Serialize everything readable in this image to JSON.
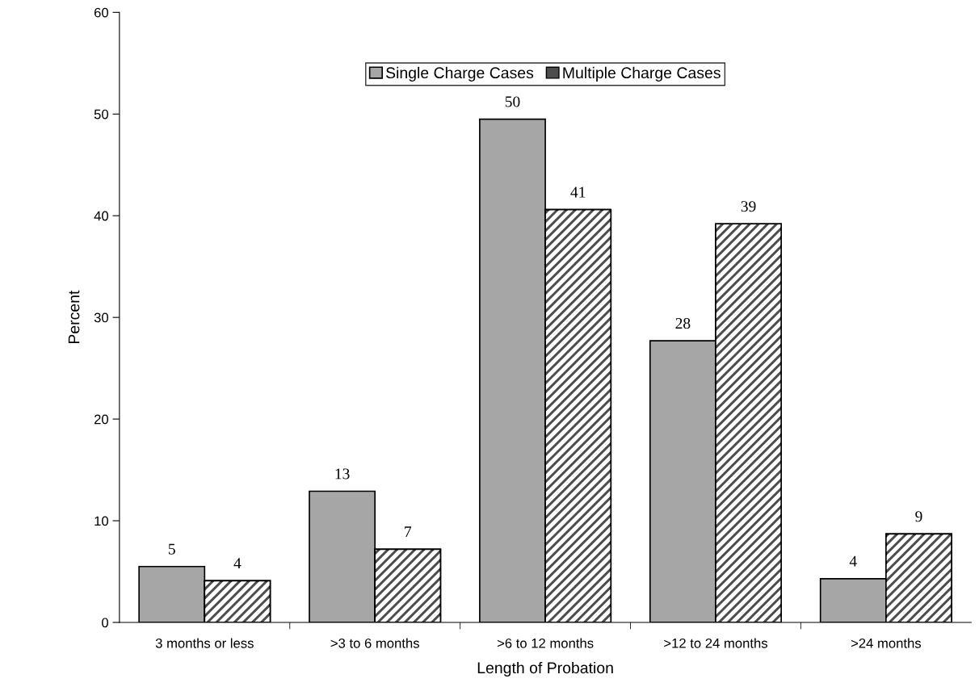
{
  "chart_data": {
    "type": "bar",
    "xlabel": "Length of Probation",
    "ylabel": "Percent",
    "categories": [
      "3 months or less",
      ">3 to 6 months",
      ">6 to 12 months",
      ">12 to 24 months",
      ">24 months"
    ],
    "series": [
      {
        "name": "Single Charge Cases",
        "color": "#a6a6a6",
        "values": [
          5.5,
          12.9,
          49.5,
          27.7,
          4.3
        ],
        "value_labels": [
          "5",
          "13",
          "50",
          "28",
          "4"
        ]
      },
      {
        "name": "Multiple Charge Cases",
        "color": "#4d4d4d",
        "values": [
          4.1,
          7.2,
          40.6,
          39.2,
          8.7
        ],
        "value_labels": [
          "4",
          "7",
          "41",
          "39",
          "9"
        ]
      }
    ],
    "ylim": [
      0,
      60
    ],
    "yticks": [
      0,
      10,
      20,
      30,
      40,
      50,
      60
    ],
    "grid": false,
    "legend": "top"
  }
}
